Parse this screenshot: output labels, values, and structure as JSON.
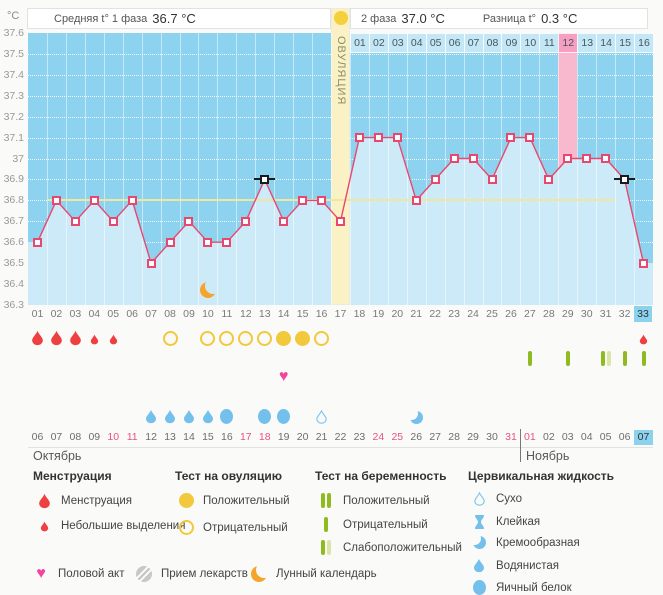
{
  "page": {
    "unit_label": "°C"
  },
  "header": {
    "phase1": {
      "label": "Средняя t° 1 фаза",
      "value": "36.7 °C"
    },
    "phase2": {
      "label": "2 фаза",
      "value": "37.0 °C"
    },
    "diff": {
      "label": "Разница t°",
      "value": "0.3 °C"
    },
    "ovulation_marker_color": "#f6cf3d"
  },
  "chart_data": {
    "type": "line",
    "title": "График базальной температуры",
    "ylabel": "°C",
    "ylim": [
      36.3,
      37.6
    ],
    "ytick_labels": [
      "37.6",
      "37.5",
      "37.4",
      "37.3",
      "37.2",
      "37.1",
      "37",
      "36.9",
      "36.8",
      "36.7",
      "36.6",
      "36.5",
      "36.4",
      "36.3"
    ],
    "x_days": [
      1,
      2,
      3,
      4,
      5,
      6,
      7,
      8,
      9,
      10,
      11,
      12,
      13,
      14,
      15,
      16,
      17,
      18,
      19,
      20,
      21,
      22,
      23,
      24,
      25,
      26,
      27,
      28,
      29,
      30,
      31,
      32,
      33
    ],
    "series": [
      {
        "name": "Базальная температура",
        "values": [
          36.6,
          36.8,
          36.7,
          36.8,
          36.7,
          36.8,
          36.5,
          36.6,
          36.7,
          36.6,
          36.6,
          36.7,
          36.9,
          36.7,
          36.8,
          36.8,
          36.7,
          37.1,
          37.1,
          37.1,
          36.8,
          36.9,
          37.0,
          37.0,
          36.9,
          37.1,
          37.1,
          36.9,
          37.0,
          37.0,
          37.0,
          36.9,
          36.5
        ]
      }
    ],
    "coverline": 36.8,
    "coverline_span_days": [
      2,
      32
    ],
    "ovulation_day": 17,
    "ovulation_band_label": "ОВУЛЯЦИЯ",
    "pink_band_day": 29,
    "black_marker_days": [
      13,
      32
    ],
    "moon_day": 10,
    "current_day": 33,
    "phase2_day_labels": [
      "01",
      "02",
      "03",
      "04",
      "05",
      "06",
      "07",
      "08",
      "09",
      "10",
      "11",
      "12",
      "13",
      "14",
      "15",
      "16"
    ],
    "phase2_pink_label": "12",
    "grid": true,
    "legend_position": "bottom"
  },
  "day_axis": {
    "labels": [
      "01",
      "02",
      "03",
      "04",
      "05",
      "06",
      "07",
      "08",
      "09",
      "10",
      "11",
      "12",
      "13",
      "14",
      "15",
      "16",
      "17",
      "18",
      "19",
      "20",
      "21",
      "22",
      "23",
      "24",
      "25",
      "26",
      "27",
      "28",
      "29",
      "30",
      "31",
      "32",
      "33"
    ],
    "highlighted": "33"
  },
  "rows": {
    "menstruation": {
      "heavy_days": [
        1,
        2,
        3
      ],
      "light_days": [
        4,
        5,
        33
      ]
    },
    "ovulation_tests": {
      "negative_days": [
        8,
        10,
        11,
        12,
        13,
        16
      ],
      "positive_days": [
        14,
        15
      ]
    },
    "pregnancy_tests": {
      "negative_days": [
        27,
        29,
        32,
        33
      ],
      "weak_positive_days": [
        31
      ]
    },
    "intercourse_days": [
      14
    ],
    "cervical": {
      "watery_days": [
        7,
        8,
        9,
        10
      ],
      "eggwhite_days": [
        11,
        13,
        14
      ],
      "dry_days": [
        16
      ],
      "creamy_days": [
        21
      ]
    }
  },
  "dates": {
    "october": {
      "label": "Октябрь",
      "days": [
        "06",
        "07",
        "08",
        "09",
        "10",
        "11",
        "12",
        "13",
        "14",
        "15",
        "16",
        "17",
        "18",
        "19",
        "20",
        "21",
        "22",
        "23",
        "24",
        "25",
        "26",
        "27",
        "28",
        "29",
        "30",
        "31"
      ],
      "weekend": [
        "10",
        "11",
        "17",
        "18",
        "24",
        "25",
        "31"
      ]
    },
    "november": {
      "label": "Ноябрь",
      "days": [
        "01",
        "02",
        "03",
        "04",
        "05",
        "06",
        "07"
      ],
      "weekend": [
        "01"
      ],
      "highlighted": "07"
    }
  },
  "legend": {
    "sections": [
      {
        "title": "Менструация",
        "items": [
          {
            "icon": "drop-large",
            "label": "Менструация"
          },
          {
            "icon": "drop-small",
            "label": "Небольшие выделения"
          }
        ]
      },
      {
        "title": "Тест на овуляцию",
        "items": [
          {
            "icon": "circle-filled",
            "label": "Положительный"
          },
          {
            "icon": "circle-outline",
            "label": "Отрицательный"
          }
        ]
      },
      {
        "title": "Тест на беременность",
        "items": [
          {
            "icon": "bars-two",
            "label": "Положительный"
          },
          {
            "icon": "bar-one",
            "label": "Отрицательный"
          },
          {
            "icon": "bars-weak",
            "label": "Слабоположительный"
          }
        ]
      },
      {
        "title": "Цервикальная жидкость",
        "items": [
          {
            "icon": "cf-dry",
            "label": "Сухо"
          },
          {
            "icon": "cf-sticky",
            "label": "Клейкая"
          },
          {
            "icon": "cf-creamy",
            "label": "Кремообразная"
          },
          {
            "icon": "cf-watery",
            "label": "Водянистая"
          },
          {
            "icon": "cf-eggwhite",
            "label": "Яичный белок"
          }
        ]
      }
    ],
    "extra_items": [
      {
        "icon": "heart",
        "label": "Половой акт"
      },
      {
        "icon": "pills",
        "label": "Прием лекарств"
      },
      {
        "icon": "moon",
        "label": "Лунный календарь"
      }
    ]
  },
  "colors": {
    "chart_bg": "#8dd3ef",
    "area_fill": "#cdeaf8",
    "line": "#e8486e",
    "coverline": "#efe6a0",
    "ovulation_band": "#faf1c4",
    "pink_band": "#f8b9ce",
    "pink_cell": "#f79fc0",
    "cell_bg": "#c3e7f5",
    "highlight_day_bg": "#8bd2ef",
    "weekend_date": "#e8537f",
    "menstruation": "#ee4040",
    "ovulation_test": "#f2c83c",
    "pregnancy_pos": "#8fbb21",
    "pregnancy_weak": "#d9e6a5",
    "cervical": "#74c0ec",
    "heart": "#f2459c",
    "moon": "#f5a42c",
    "meds": "#c8c8c8"
  }
}
